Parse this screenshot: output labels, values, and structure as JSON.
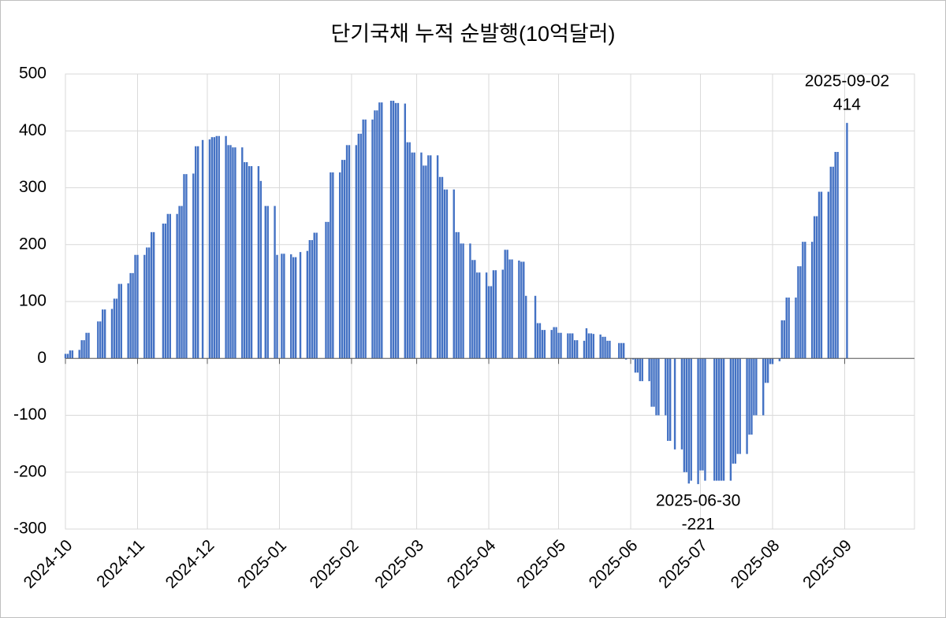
{
  "chart_data": {
    "type": "bar",
    "title": "단기국채 누적 순발행(10억달러)",
    "x": [
      "2024-10-01",
      "2024-10-02",
      "2024-10-03",
      "2024-10-04",
      "2024-10-07",
      "2024-10-08",
      "2024-10-09",
      "2024-10-10",
      "2024-10-11",
      "2024-10-15",
      "2024-10-16",
      "2024-10-17",
      "2024-10-18",
      "2024-10-21",
      "2024-10-22",
      "2024-10-23",
      "2024-10-24",
      "2024-10-25",
      "2024-10-28",
      "2024-10-29",
      "2024-10-30",
      "2024-10-31",
      "2024-11-01",
      "2024-11-04",
      "2024-11-05",
      "2024-11-06",
      "2024-11-07",
      "2024-11-08",
      "2024-11-12",
      "2024-11-13",
      "2024-11-14",
      "2024-11-15",
      "2024-11-18",
      "2024-11-19",
      "2024-11-20",
      "2024-11-21",
      "2024-11-22",
      "2024-11-25",
      "2024-11-26",
      "2024-11-27",
      "2024-11-29",
      "2024-12-02",
      "2024-12-03",
      "2024-12-04",
      "2024-12-05",
      "2024-12-06",
      "2024-12-09",
      "2024-12-10",
      "2024-12-11",
      "2024-12-12",
      "2024-12-13",
      "2024-12-16",
      "2024-12-17",
      "2024-12-18",
      "2024-12-19",
      "2024-12-20",
      "2024-12-23",
      "2024-12-24",
      "2024-12-26",
      "2024-12-27",
      "2024-12-30",
      "2024-12-31",
      "2025-01-02",
      "2025-01-03",
      "2025-01-06",
      "2025-01-07",
      "2025-01-08",
      "2025-01-10",
      "2025-01-13",
      "2025-01-14",
      "2025-01-15",
      "2025-01-16",
      "2025-01-17",
      "2025-01-21",
      "2025-01-22",
      "2025-01-23",
      "2025-01-24",
      "2025-01-27",
      "2025-01-28",
      "2025-01-29",
      "2025-01-30",
      "2025-01-31",
      "2025-02-03",
      "2025-02-04",
      "2025-02-05",
      "2025-02-06",
      "2025-02-07",
      "2025-02-10",
      "2025-02-11",
      "2025-02-12",
      "2025-02-13",
      "2025-02-14",
      "2025-02-18",
      "2025-02-19",
      "2025-02-20",
      "2025-02-21",
      "2025-02-24",
      "2025-02-25",
      "2025-02-26",
      "2025-02-27",
      "2025-02-28",
      "2025-03-03",
      "2025-03-04",
      "2025-03-05",
      "2025-03-06",
      "2025-03-07",
      "2025-03-10",
      "2025-03-11",
      "2025-03-12",
      "2025-03-13",
      "2025-03-14",
      "2025-03-17",
      "2025-03-18",
      "2025-03-19",
      "2025-03-20",
      "2025-03-21",
      "2025-03-24",
      "2025-03-25",
      "2025-03-26",
      "2025-03-27",
      "2025-03-28",
      "2025-03-31",
      "2025-04-01",
      "2025-04-02",
      "2025-04-03",
      "2025-04-04",
      "2025-04-07",
      "2025-04-08",
      "2025-04-09",
      "2025-04-10",
      "2025-04-11",
      "2025-04-14",
      "2025-04-15",
      "2025-04-16",
      "2025-04-17",
      "2025-04-21",
      "2025-04-22",
      "2025-04-23",
      "2025-04-24",
      "2025-04-25",
      "2025-04-28",
      "2025-04-29",
      "2025-04-30",
      "2025-05-01",
      "2025-05-02",
      "2025-05-05",
      "2025-05-06",
      "2025-05-07",
      "2025-05-08",
      "2025-05-09",
      "2025-05-12",
      "2025-05-13",
      "2025-05-14",
      "2025-05-15",
      "2025-05-16",
      "2025-05-19",
      "2025-05-20",
      "2025-05-21",
      "2025-05-22",
      "2025-05-23",
      "2025-05-27",
      "2025-05-28",
      "2025-05-29",
      "2025-05-30",
      "2025-06-02",
      "2025-06-03",
      "2025-06-04",
      "2025-06-05",
      "2025-06-06",
      "2025-06-09",
      "2025-06-10",
      "2025-06-11",
      "2025-06-12",
      "2025-06-13",
      "2025-06-16",
      "2025-06-17",
      "2025-06-18",
      "2025-06-20",
      "2025-06-23",
      "2025-06-24",
      "2025-06-25",
      "2025-06-26",
      "2025-06-27",
      "2025-06-30",
      "2025-07-01",
      "2025-07-02",
      "2025-07-03",
      "2025-07-07",
      "2025-07-08",
      "2025-07-09",
      "2025-07-10",
      "2025-07-11",
      "2025-07-14",
      "2025-07-15",
      "2025-07-16",
      "2025-07-17",
      "2025-07-18",
      "2025-07-21",
      "2025-07-22",
      "2025-07-23",
      "2025-07-24",
      "2025-07-25",
      "2025-07-28",
      "2025-07-29",
      "2025-07-30",
      "2025-07-31",
      "2025-08-01",
      "2025-08-04",
      "2025-08-05",
      "2025-08-06",
      "2025-08-07",
      "2025-08-08",
      "2025-08-11",
      "2025-08-12",
      "2025-08-13",
      "2025-08-14",
      "2025-08-15",
      "2025-08-18",
      "2025-08-19",
      "2025-08-20",
      "2025-08-21",
      "2025-08-22",
      "2025-08-25",
      "2025-08-26",
      "2025-08-27",
      "2025-08-28",
      "2025-08-29",
      "2025-09-02"
    ],
    "values": [
      8,
      8,
      14,
      14,
      15,
      32,
      32,
      45,
      45,
      65,
      65,
      86,
      86,
      87,
      105,
      105,
      131,
      131,
      132,
      150,
      150,
      182,
      182,
      182,
      195,
      195,
      222,
      222,
      237,
      237,
      254,
      254,
      254,
      268,
      268,
      324,
      324,
      325,
      373,
      373,
      384,
      385,
      389,
      389,
      391,
      391,
      391,
      375,
      375,
      371,
      371,
      371,
      345,
      345,
      338,
      338,
      338,
      312,
      268,
      268,
      268,
      182,
      184,
      184,
      183,
      178,
      178,
      187,
      189,
      208,
      208,
      221,
      221,
      240,
      240,
      327,
      327,
      327,
      349,
      349,
      375,
      375,
      375,
      395,
      395,
      420,
      420,
      420,
      436,
      436,
      450,
      450,
      453,
      453,
      449,
      449,
      448,
      380,
      380,
      362,
      362,
      362,
      339,
      339,
      357,
      357,
      357,
      319,
      319,
      297,
      297,
      297,
      222,
      222,
      202,
      202,
      202,
      173,
      173,
      151,
      151,
      151,
      127,
      127,
      155,
      155,
      156,
      191,
      191,
      174,
      174,
      172,
      170,
      170,
      110,
      110,
      62,
      62,
      50,
      50,
      50,
      55,
      55,
      45,
      45,
      44,
      44,
      44,
      32,
      32,
      31,
      53,
      44,
      44,
      43,
      42,
      38,
      38,
      31,
      31,
      27,
      27,
      27,
      -2,
      -2,
      -25,
      -25,
      -40,
      -40,
      -40,
      -85,
      -85,
      -100,
      -100,
      -100,
      -145,
      -145,
      -160,
      -160,
      -200,
      -200,
      -220,
      -215,
      -221,
      -197,
      -197,
      -215,
      -215,
      -215,
      -215,
      -215,
      -215,
      -215,
      -185,
      -185,
      -168,
      -168,
      -168,
      -134,
      -134,
      -100,
      -100,
      -100,
      -43,
      -43,
      -10,
      -10,
      -5,
      67,
      67,
      107,
      107,
      107,
      162,
      162,
      205,
      205,
      205,
      250,
      250,
      293,
      293,
      293,
      337,
      337,
      363,
      363,
      414
    ],
    "color": "#4472c4",
    "xlim": [
      "2024-10-01",
      "2025-10-01"
    ],
    "xticks": [
      {
        "value": "2024-10-01",
        "label": "2024-10"
      },
      {
        "value": "2024-11-01",
        "label": "2024-11"
      },
      {
        "value": "2024-12-01",
        "label": "2024-12"
      },
      {
        "value": "2025-01-01",
        "label": "2025-01"
      },
      {
        "value": "2025-02-01",
        "label": "2025-02"
      },
      {
        "value": "2025-03-01",
        "label": "2025-03"
      },
      {
        "value": "2025-04-01",
        "label": "2025-04"
      },
      {
        "value": "2025-05-01",
        "label": "2025-05"
      },
      {
        "value": "2025-06-01",
        "label": "2025-06"
      },
      {
        "value": "2025-07-01",
        "label": "2025-07"
      },
      {
        "value": "2025-08-01",
        "label": "2025-08"
      },
      {
        "value": "2025-09-01",
        "label": "2025-09"
      }
    ],
    "ylim": [
      -300,
      500
    ],
    "yticks": [
      -300,
      -200,
      -100,
      0,
      100,
      200,
      300,
      400,
      500
    ],
    "grid": true
  }
}
